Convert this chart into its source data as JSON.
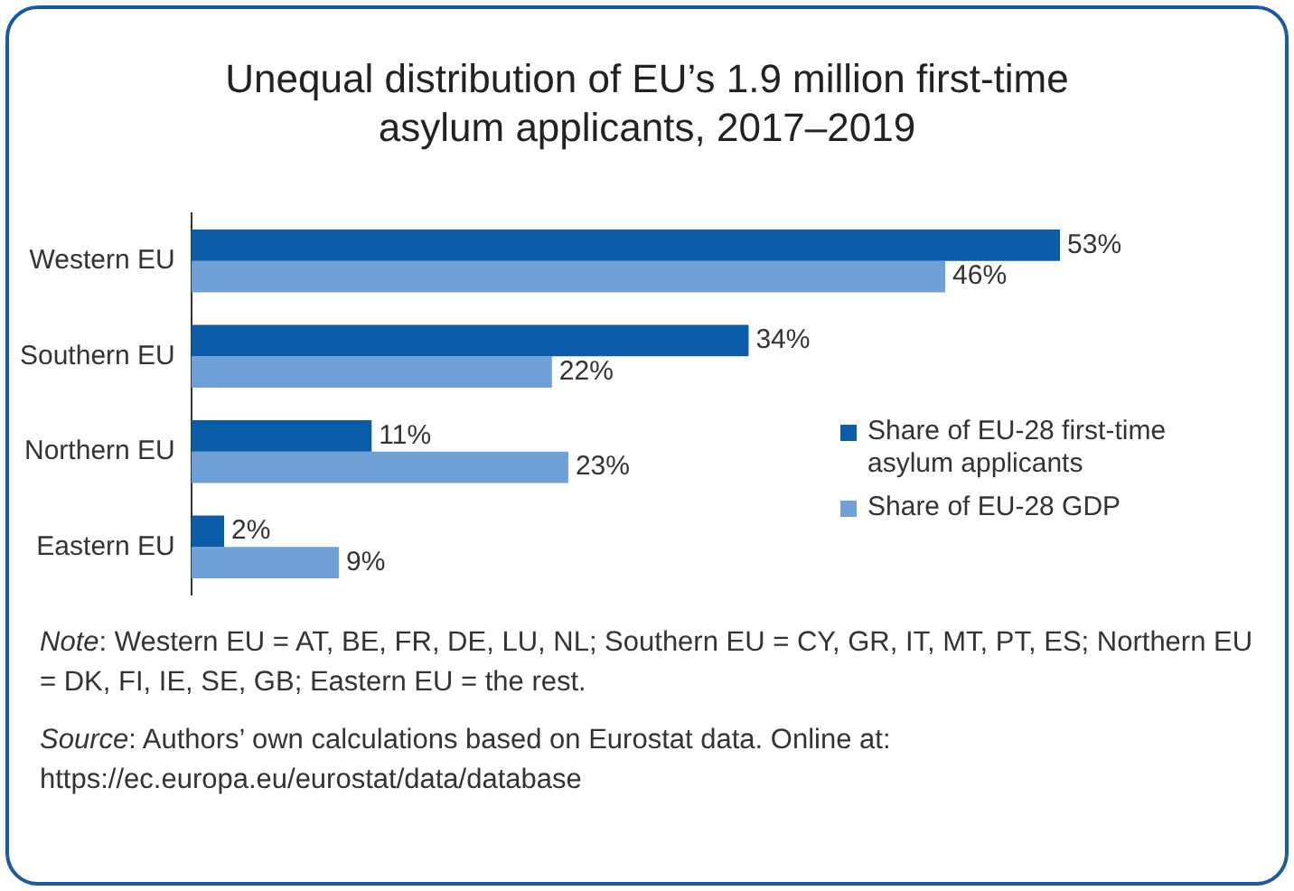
{
  "chart_data": {
    "type": "bar",
    "orientation": "horizontal",
    "title": "Unequal distribution of EU’s 1.9 million first-time asylum applicants, 2017–2019",
    "categories": [
      "Western EU",
      "Southern EU",
      "Northern EU",
      "Eastern EU"
    ],
    "series": [
      {
        "name": "Share of EU-28 first-time asylum applicants",
        "color": "#0b5ca8",
        "values": [
          53,
          34,
          11,
          2
        ],
        "value_labels": [
          "53%",
          "34%",
          "11%",
          "2%"
        ]
      },
      {
        "name": "Share of EU-28 GDP",
        "color": "#6fa1d7",
        "values": [
          46,
          22,
          23,
          9
        ],
        "value_labels": [
          "46%",
          "22%",
          "23%",
          "9%"
        ]
      }
    ],
    "legend": "right",
    "annotations": [
      "Note: Western EU = AT, BE, FR, DE, LU, NL; Southern EU = CY, GR, IT, MT, PT, ES; Northern EU = DK, FI, IE, SE, GB; Eastern EU =  the rest.",
      "Source: Authors’ own calculations based on Eurostat data. Online at: https://ec.europa.eu/eurostat/data/database"
    ]
  }
}
